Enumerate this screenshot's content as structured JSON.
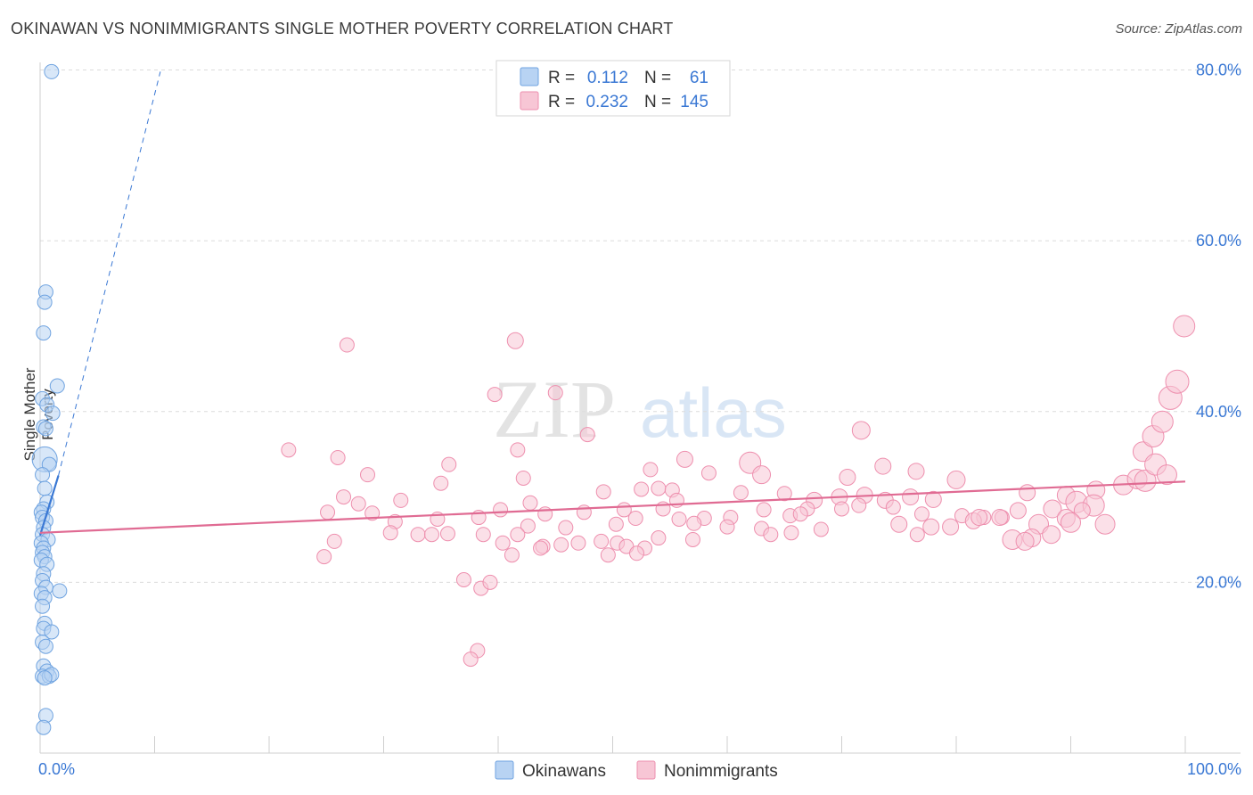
{
  "header": {
    "title": "OKINAWAN VS NONIMMIGRANTS SINGLE MOTHER POVERTY CORRELATION CHART",
    "source": "Source: ZipAtlas.com"
  },
  "watermark": {
    "zip": "ZIP",
    "atlas": "atlas"
  },
  "chart_data": {
    "type": "scatter",
    "ylabel": "Single Mother Poverty",
    "xlim": [
      0,
      100
    ],
    "ylim": [
      0,
      82
    ],
    "x_tick_labels": [
      "0.0%",
      "100.0%"
    ],
    "y_ticks": [
      20,
      40,
      60,
      80
    ],
    "y_tick_labels": [
      "20.0%",
      "40.0%",
      "60.0%",
      "80.0%"
    ],
    "grid": true,
    "legend_position": "top-center",
    "stats": [
      {
        "r_label": "R = ",
        "r_value": "0.112",
        "n_label": "N = ",
        "n_value": "61"
      },
      {
        "r_label": "R = ",
        "r_value": "0.232",
        "n_label": "N = ",
        "n_value": "145"
      }
    ],
    "series": [
      {
        "name": "Okinawans",
        "color": "#6fa3e0",
        "fill": "#b8d3f3",
        "trend": {
          "solid": [
            [
              0,
              25.5
            ],
            [
              1.6,
              32.5
            ]
          ],
          "dashed": [
            [
              1.6,
              32.5
            ],
            [
              10.5,
              79.8
            ]
          ],
          "color": "#3a78d4"
        },
        "points": [
          [
            1.0,
            79.8,
            8
          ],
          [
            0.5,
            54.0,
            8
          ],
          [
            0.4,
            52.8,
            8
          ],
          [
            0.3,
            49.2,
            8
          ],
          [
            1.5,
            43.0,
            8
          ],
          [
            0.2,
            41.5,
            8
          ],
          [
            0.6,
            40.8,
            8
          ],
          [
            1.1,
            39.8,
            8
          ],
          [
            0.3,
            38.2,
            8
          ],
          [
            0.5,
            38.0,
            8
          ],
          [
            0.4,
            34.4,
            14
          ],
          [
            0.8,
            33.8,
            8
          ],
          [
            0.2,
            32.6,
            8
          ],
          [
            0.4,
            31.0,
            8
          ],
          [
            0.6,
            29.4,
            8
          ],
          [
            0.3,
            28.6,
            8
          ],
          [
            0.1,
            28.2,
            8
          ],
          [
            0.2,
            27.6,
            8
          ],
          [
            0.5,
            27.2,
            8
          ],
          [
            0.3,
            26.4,
            8
          ],
          [
            0.2,
            25.6,
            8
          ],
          [
            0.7,
            25.0,
            8
          ],
          [
            0.1,
            24.6,
            8
          ],
          [
            0.3,
            24.0,
            8
          ],
          [
            0.2,
            23.5,
            8
          ],
          [
            0.4,
            23.0,
            8
          ],
          [
            0.1,
            22.6,
            8
          ],
          [
            0.6,
            22.1,
            8
          ],
          [
            0.3,
            21.0,
            8
          ],
          [
            0.2,
            20.2,
            8
          ],
          [
            0.5,
            19.4,
            8
          ],
          [
            1.7,
            19.0,
            8
          ],
          [
            0.1,
            18.7,
            8
          ],
          [
            0.4,
            18.2,
            8
          ],
          [
            0.2,
            17.2,
            8
          ],
          [
            0.4,
            15.2,
            8
          ],
          [
            0.3,
            14.6,
            8
          ],
          [
            1.0,
            14.2,
            8
          ],
          [
            0.2,
            13.0,
            8
          ],
          [
            0.5,
            12.5,
            8
          ],
          [
            0.3,
            10.2,
            8
          ],
          [
            0.6,
            9.6,
            8
          ],
          [
            0.2,
            9.0,
            8
          ],
          [
            0.8,
            9.0,
            8
          ],
          [
            1.0,
            9.2,
            8
          ],
          [
            0.4,
            8.8,
            8
          ],
          [
            0.5,
            4.4,
            8
          ],
          [
            0.3,
            3.0,
            8
          ]
        ]
      },
      {
        "name": "Nonimmigrants",
        "color": "#ee8fae",
        "fill": "#f7c6d5",
        "trend": {
          "solid": [
            [
              0,
              25.8
            ],
            [
              100,
              31.8
            ]
          ],
          "color": "#e06b93"
        },
        "points": [
          [
            26.8,
            47.8,
            8
          ],
          [
            41.5,
            48.3,
            9
          ],
          [
            39.7,
            42.0,
            8
          ],
          [
            45.0,
            42.2,
            8
          ],
          [
            47.8,
            37.3,
            8
          ],
          [
            21.7,
            35.5,
            8
          ],
          [
            26.0,
            34.6,
            8
          ],
          [
            41.7,
            35.5,
            8
          ],
          [
            56.3,
            34.4,
            9
          ],
          [
            71.7,
            37.8,
            10
          ],
          [
            35.7,
            33.8,
            8
          ],
          [
            28.6,
            32.6,
            8
          ],
          [
            35.0,
            31.6,
            8
          ],
          [
            42.2,
            32.2,
            8
          ],
          [
            53.3,
            33.2,
            8
          ],
          [
            58.4,
            32.8,
            8
          ],
          [
            62.0,
            34.0,
            12
          ],
          [
            63.0,
            32.6,
            10
          ],
          [
            70.5,
            32.3,
            9
          ],
          [
            73.6,
            33.6,
            9
          ],
          [
            76.5,
            33.0,
            9
          ],
          [
            80.0,
            32.0,
            10
          ],
          [
            26.5,
            30.0,
            8
          ],
          [
            27.8,
            29.2,
            8
          ],
          [
            31.5,
            29.6,
            8
          ],
          [
            42.8,
            29.3,
            8
          ],
          [
            49.2,
            30.6,
            8
          ],
          [
            52.5,
            30.9,
            8
          ],
          [
            54.0,
            31.0,
            8
          ],
          [
            55.2,
            30.8,
            8
          ],
          [
            55.6,
            29.6,
            8
          ],
          [
            61.2,
            30.5,
            8
          ],
          [
            65.0,
            30.4,
            8
          ],
          [
            67.6,
            29.6,
            9
          ],
          [
            69.8,
            30.0,
            9
          ],
          [
            72.0,
            30.2,
            9
          ],
          [
            73.8,
            29.6,
            9
          ],
          [
            76.0,
            30.0,
            9
          ],
          [
            78.0,
            29.7,
            9
          ],
          [
            86.2,
            30.5,
            9
          ],
          [
            89.6,
            30.2,
            10
          ],
          [
            92.2,
            30.8,
            10
          ],
          [
            94.6,
            31.4,
            11
          ],
          [
            95.8,
            32.1,
            11
          ],
          [
            96.5,
            31.9,
            12
          ],
          [
            90.5,
            29.4,
            12
          ],
          [
            92.0,
            29.0,
            12
          ],
          [
            25.1,
            28.2,
            8
          ],
          [
            29.0,
            28.1,
            8
          ],
          [
            34.7,
            27.4,
            8
          ],
          [
            38.3,
            27.6,
            8
          ],
          [
            40.2,
            28.5,
            8
          ],
          [
            44.1,
            28.0,
            8
          ],
          [
            47.5,
            28.2,
            8
          ],
          [
            51.0,
            28.5,
            8
          ],
          [
            54.4,
            28.6,
            8
          ],
          [
            55.8,
            27.4,
            8
          ],
          [
            58.0,
            27.5,
            8
          ],
          [
            60.3,
            27.6,
            8
          ],
          [
            63.2,
            28.5,
            8
          ],
          [
            65.5,
            27.8,
            8
          ],
          [
            67.0,
            28.6,
            8
          ],
          [
            70.0,
            28.6,
            8
          ],
          [
            71.5,
            29.0,
            8
          ],
          [
            74.5,
            28.8,
            8
          ],
          [
            77.0,
            28.0,
            8
          ],
          [
            80.5,
            27.8,
            8
          ],
          [
            82.4,
            27.6,
            8
          ],
          [
            84.0,
            27.6,
            8
          ],
          [
            85.4,
            28.4,
            9
          ],
          [
            88.4,
            28.6,
            10
          ],
          [
            89.6,
            27.5,
            10
          ],
          [
            91.0,
            28.4,
            9
          ],
          [
            31.0,
            27.1,
            8
          ],
          [
            42.6,
            26.6,
            8
          ],
          [
            45.9,
            26.4,
            8
          ],
          [
            50.3,
            26.8,
            8
          ],
          [
            52.0,
            27.5,
            8
          ],
          [
            57.1,
            26.9,
            8
          ],
          [
            60.0,
            26.5,
            8
          ],
          [
            63.0,
            26.3,
            8
          ],
          [
            65.6,
            25.8,
            8
          ],
          [
            68.2,
            26.2,
            8
          ],
          [
            75.0,
            26.8,
            9
          ],
          [
            77.8,
            26.5,
            9
          ],
          [
            79.5,
            26.5,
            9
          ],
          [
            81.5,
            27.2,
            9
          ],
          [
            83.8,
            27.6,
            9
          ],
          [
            87.2,
            26.8,
            11
          ],
          [
            90.0,
            27.0,
            11
          ],
          [
            93.0,
            26.8,
            11
          ],
          [
            96.3,
            35.3,
            11
          ],
          [
            97.2,
            37.1,
            12
          ],
          [
            98.0,
            38.8,
            12
          ],
          [
            98.7,
            41.6,
            13
          ],
          [
            99.3,
            43.5,
            13
          ],
          [
            99.9,
            50.0,
            12
          ],
          [
            97.4,
            33.8,
            12
          ],
          [
            98.4,
            32.6,
            11
          ],
          [
            30.6,
            25.8,
            8
          ],
          [
            33.0,
            25.6,
            8
          ],
          [
            34.2,
            25.6,
            8
          ],
          [
            35.6,
            25.7,
            8
          ],
          [
            40.4,
            24.6,
            8
          ],
          [
            43.9,
            24.2,
            8
          ],
          [
            47.0,
            24.6,
            8
          ],
          [
            50.4,
            24.6,
            8
          ],
          [
            51.2,
            24.2,
            8
          ],
          [
            54.0,
            25.2,
            8
          ],
          [
            57.0,
            25.0,
            8
          ],
          [
            63.8,
            25.6,
            8
          ],
          [
            76.6,
            25.6,
            8
          ],
          [
            84.9,
            25.0,
            11
          ],
          [
            86.6,
            25.2,
            10
          ],
          [
            88.3,
            25.6,
            10
          ],
          [
            25.7,
            24.8,
            8
          ],
          [
            38.7,
            25.6,
            8
          ],
          [
            41.7,
            25.6,
            8
          ],
          [
            45.5,
            24.4,
            8
          ],
          [
            49.0,
            24.8,
            8
          ],
          [
            52.8,
            24.0,
            8
          ],
          [
            24.8,
            23.0,
            8
          ],
          [
            41.2,
            23.2,
            8
          ],
          [
            43.7,
            24.0,
            8
          ],
          [
            49.6,
            23.2,
            8
          ],
          [
            37.0,
            20.3,
            8
          ],
          [
            38.5,
            19.3,
            8
          ],
          [
            39.3,
            20.0,
            8
          ],
          [
            52.1,
            23.4,
            8
          ],
          [
            38.2,
            12.0,
            8
          ],
          [
            37.6,
            11.0,
            8
          ],
          [
            82.0,
            27.6,
            9
          ],
          [
            86.0,
            24.8,
            10
          ],
          [
            66.4,
            28.0,
            8
          ]
        ]
      }
    ]
  }
}
